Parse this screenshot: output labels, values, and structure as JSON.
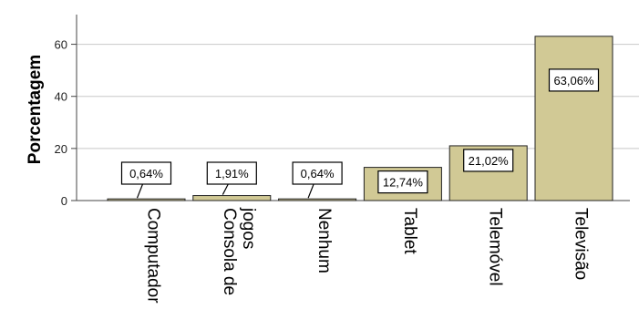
{
  "chart_data": {
    "type": "bar",
    "title": "",
    "xlabel": "",
    "ylabel": "Porcentagem",
    "ylim": [
      0,
      70
    ],
    "yticks": [
      0,
      20,
      40,
      60
    ],
    "grid": true,
    "bar_color": "#d1c995",
    "categories": [
      [
        "Computador"
      ],
      [
        "Consola de",
        "jogos"
      ],
      [
        "Nenhum"
      ],
      [
        "Tablet"
      ],
      [
        "Telemóvel"
      ],
      [
        "Televisão"
      ]
    ],
    "values": [
      0.64,
      1.91,
      0.64,
      12.74,
      21.02,
      63.06
    ],
    "data_labels": [
      "0,64%",
      "1,91%",
      "0,64%",
      "12,74%",
      "21,02%",
      "63,06%"
    ]
  }
}
